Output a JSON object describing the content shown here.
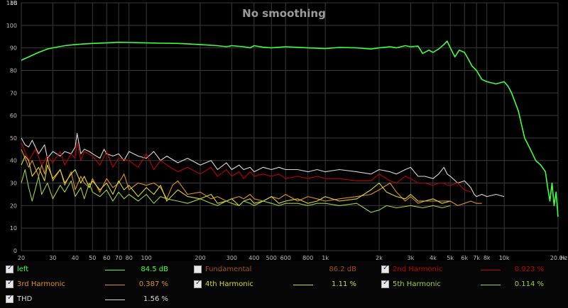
{
  "chart_data": {
    "type": "line",
    "title": "No smoothing",
    "xlabel": "Hz",
    "ylabel": "dB",
    "x_scale": "log",
    "xlim": [
      20,
      20000
    ],
    "ylim": [
      0,
      110
    ],
    "grid": true,
    "x_ticks": [
      {
        "v": 20,
        "label": "20"
      },
      {
        "v": 30,
        "label": "30"
      },
      {
        "v": 40,
        "label": "40"
      },
      {
        "v": 50,
        "label": "50"
      },
      {
        "v": 60,
        "label": "60"
      },
      {
        "v": 70,
        "label": "70"
      },
      {
        "v": 80,
        "label": "80"
      },
      {
        "v": 100,
        "label": "100"
      },
      {
        "v": 200,
        "label": "200"
      },
      {
        "v": 300,
        "label": "300"
      },
      {
        "v": 400,
        "label": "400"
      },
      {
        "v": 500,
        "label": "500"
      },
      {
        "v": 600,
        "label": "600"
      },
      {
        "v": 800,
        "label": "800"
      },
      {
        "v": 1000,
        "label": "1k"
      },
      {
        "v": 2000,
        "label": "2k"
      },
      {
        "v": 3000,
        "label": "3k"
      },
      {
        "v": 4000,
        "label": "4k"
      },
      {
        "v": 5000,
        "label": "5k"
      },
      {
        "v": 6000,
        "label": "6k"
      },
      {
        "v": 7000,
        "label": "7k"
      },
      {
        "v": 8000,
        "label": "8k"
      },
      {
        "v": 10000,
        "label": "10k"
      },
      {
        "v": 20000,
        "label": "20.0k"
      }
    ],
    "y_ticks": [
      {
        "v": 0,
        "label": "0"
      },
      {
        "v": 10,
        "label": "10"
      },
      {
        "v": 20,
        "label": "20"
      },
      {
        "v": 30,
        "label": "30"
      },
      {
        "v": 40,
        "label": "40"
      },
      {
        "v": 50,
        "label": "50"
      },
      {
        "v": 60,
        "label": "60"
      },
      {
        "v": 70,
        "label": "70"
      },
      {
        "v": 80,
        "label": "80"
      },
      {
        "v": 90,
        "label": "90"
      },
      {
        "v": 100,
        "label": "100"
      },
      {
        "v": 110,
        "label": "110"
      }
    ],
    "series": [
      {
        "name": "THD",
        "color": "#d8d8d8",
        "x": [
          20,
          21,
          22,
          23,
          25,
          27,
          28,
          30,
          33,
          35,
          38,
          40,
          41,
          43,
          45,
          48,
          50,
          55,
          58,
          60,
          65,
          70,
          75,
          80,
          90,
          100,
          110,
          120,
          130,
          150,
          170,
          200,
          230,
          250,
          280,
          300,
          330,
          350,
          380,
          400,
          450,
          500,
          550,
          600,
          700,
          800,
          900,
          1000,
          1200,
          1500,
          1800,
          2000,
          2300,
          2500,
          2800,
          3000,
          3300,
          3600,
          4000,
          4300,
          4600,
          4800,
          5000,
          5500,
          6000,
          6500,
          6800,
          7000,
          7500,
          8000,
          9000,
          10000
        ],
        "y": [
          50,
          47,
          46,
          49,
          43,
          47,
          41,
          44,
          42,
          44,
          43,
          46,
          52,
          43,
          45,
          44,
          43,
          41,
          45,
          43,
          42,
          43,
          40,
          44,
          42,
          41,
          44,
          40,
          42,
          39,
          41,
          38,
          40,
          36,
          39,
          36,
          38,
          36,
          37,
          35,
          37,
          36,
          37,
          36,
          36,
          35,
          36,
          35,
          36,
          35,
          34,
          36,
          35,
          34,
          36,
          37,
          33,
          33,
          32,
          34,
          37,
          34,
          33,
          30,
          31,
          28,
          25,
          24,
          25,
          24,
          25,
          24
        ]
      },
      {
        "name": "2nd Harmonic",
        "color": "#c00000",
        "x": [
          20,
          22,
          24,
          26,
          28,
          30,
          33,
          35,
          38,
          40,
          41,
          43,
          45,
          50,
          55,
          60,
          65,
          70,
          80,
          90,
          100,
          110,
          120,
          130,
          150,
          170,
          200,
          230,
          250,
          280,
          300,
          330,
          350,
          380,
          400,
          450,
          500,
          550,
          600,
          700,
          800,
          900,
          1000,
          1200,
          1500,
          1800,
          2000,
          2300,
          2500,
          2800,
          3000,
          3300,
          3600,
          4000,
          4300,
          4600,
          4800,
          5000,
          5500,
          6000,
          6500
        ],
        "y": [
          48,
          40,
          45,
          38,
          42,
          39,
          44,
          38,
          43,
          41,
          48,
          40,
          44,
          42,
          38,
          44,
          37,
          41,
          40,
          37,
          43,
          36,
          40,
          38,
          35,
          37,
          34,
          37,
          33,
          36,
          33,
          35,
          32,
          35,
          33,
          34,
          33,
          34,
          32,
          33,
          32,
          33,
          32,
          32,
          31,
          31,
          34,
          31,
          30,
          33,
          32,
          30,
          30,
          29,
          30,
          30,
          29,
          29,
          30,
          27,
          26
        ]
      },
      {
        "name": "3rd Harmonic",
        "color": "#e09020",
        "x": [
          20,
          21,
          22,
          23,
          25,
          26,
          27,
          28,
          30,
          33,
          35,
          38,
          40,
          43,
          45,
          48,
          50,
          55,
          60,
          65,
          70,
          75,
          80,
          90,
          100,
          110,
          120,
          130,
          140,
          150,
          170,
          200,
          230,
          250,
          280,
          300,
          330,
          350,
          380,
          400,
          450,
          500,
          550,
          600,
          700,
          800,
          900,
          1000,
          1200,
          1500,
          1800,
          2000,
          2300,
          2500,
          2800,
          3000,
          3300,
          3600,
          4000,
          4500,
          5000,
          5500,
          6000,
          6500,
          7000,
          7500
        ],
        "y": [
          45,
          41,
          37,
          40,
          33,
          38,
          34,
          41,
          31,
          36,
          29,
          35,
          27,
          33,
          30,
          28,
          32,
          26,
          32,
          28,
          30,
          34,
          27,
          30,
          29,
          30,
          28,
          23,
          29,
          31,
          25,
          26,
          23,
          24,
          22,
          23,
          24,
          23,
          25,
          23,
          22,
          24,
          23,
          25,
          22,
          24,
          23,
          22,
          23,
          24,
          25,
          27,
          30,
          26,
          22,
          24,
          21,
          22,
          22,
          22,
          22,
          20,
          21,
          22,
          21,
          21
        ]
      },
      {
        "name": "4th Harmonic",
        "color": "#d8d830",
        "x": [
          20,
          21,
          22,
          23,
          25,
          27,
          28,
          30,
          33,
          35,
          38,
          40,
          43,
          45,
          48,
          50,
          55,
          60,
          65,
          70,
          75,
          80,
          90,
          100,
          110,
          120,
          130,
          150,
          170,
          200,
          230,
          250,
          280,
          300,
          330,
          350,
          380,
          400,
          450,
          500,
          550,
          600,
          700,
          800,
          900,
          1000,
          1200,
          1500,
          1800,
          2000,
          2200,
          2500,
          2800,
          3000,
          3300,
          3600,
          4000,
          4500,
          5000
        ],
        "y": [
          38,
          42,
          40,
          33,
          37,
          31,
          38,
          32,
          36,
          30,
          34,
          36,
          30,
          33,
          28,
          31,
          27,
          30,
          25,
          31,
          27,
          29,
          24,
          28,
          25,
          29,
          22,
          27,
          24,
          23,
          25,
          21,
          22,
          23,
          20,
          22,
          23,
          21,
          22,
          24,
          21,
          22,
          23,
          21,
          22,
          24,
          22,
          23,
          27,
          30,
          26,
          24,
          23,
          25,
          22,
          22,
          23,
          21,
          22
        ]
      },
      {
        "name": "5th Harmonic",
        "color": "#a0d040",
        "x": [
          20,
          21,
          22,
          23,
          25,
          26,
          28,
          30,
          33,
          35,
          38,
          40,
          43,
          45,
          48,
          50,
          55,
          60,
          65,
          70,
          75,
          80,
          90,
          100,
          110,
          120,
          130,
          150,
          170,
          200,
          230,
          250,
          280,
          300,
          330,
          350,
          380,
          400,
          450,
          500,
          550,
          600,
          700,
          800,
          900,
          1000,
          1200,
          1500,
          1800,
          2000,
          2200,
          2500,
          3000,
          3500,
          4000,
          4500,
          5000
        ],
        "y": [
          30,
          36,
          28,
          22,
          33,
          25,
          30,
          23,
          29,
          26,
          31,
          24,
          28,
          23,
          30,
          26,
          24,
          27,
          22,
          26,
          23,
          25,
          22,
          25,
          21,
          24,
          23,
          22,
          21,
          23,
          21,
          20,
          22,
          21,
          20,
          22,
          21,
          20,
          22,
          21,
          20,
          21,
          21,
          20,
          21,
          21,
          20,
          21,
          17,
          18,
          20,
          19,
          20,
          19,
          20,
          19,
          20
        ]
      },
      {
        "name": "left",
        "color": "#40ff40",
        "x": [
          20,
          22,
          25,
          28,
          30,
          35,
          40,
          50,
          60,
          70,
          80,
          90,
          100,
          120,
          150,
          200,
          250,
          280,
          300,
          350,
          380,
          400,
          450,
          500,
          600,
          800,
          1000,
          1200,
          1500,
          1800,
          2000,
          2300,
          2500,
          2800,
          3000,
          3300,
          3500,
          3800,
          4000,
          4300,
          4600,
          4800,
          5000,
          5300,
          5600,
          6000,
          6300,
          6600,
          7000,
          7500,
          8000,
          9000,
          10000,
          10500,
          11000,
          12000,
          13000,
          14000,
          15000,
          16000,
          17000,
          17500,
          18000,
          18500,
          19000,
          19500,
          20000
        ],
        "y": [
          84.5,
          86,
          88,
          89.5,
          90,
          91,
          91.5,
          92,
          92.2,
          92.5,
          92.4,
          92.3,
          92.2,
          92.1,
          92,
          91.5,
          91,
          90.5,
          91,
          90.5,
          90,
          91,
          90.3,
          90,
          90.5,
          90,
          89.7,
          90.2,
          90,
          89.5,
          90,
          90.5,
          90,
          91,
          90.5,
          90.8,
          87.5,
          89,
          88,
          89.5,
          91.5,
          93,
          90,
          86,
          89,
          88,
          85,
          82,
          80,
          76,
          75,
          74,
          75,
          73,
          70,
          62,
          50,
          45,
          40,
          38,
          35,
          28,
          22,
          30,
          20,
          26,
          15
        ]
      }
    ],
    "legend": {
      "placement": "bottom",
      "entries": [
        {
          "name": "left",
          "value": "84.5 dB",
          "checked": true,
          "label_color": "#40ff40",
          "value_color": "#40ff40",
          "line_color": "#40ff40"
        },
        {
          "name": "Fundamental",
          "value": "86.2 dB",
          "checked": false,
          "label_color": "#a05010",
          "value_color": "#a05010",
          "line_color": ""
        },
        {
          "name": "2nd Harmonic",
          "value": "0.923 %",
          "checked": true,
          "label_color": "#c00000",
          "value_color": "#c00000",
          "line_color": "#c00000"
        },
        {
          "name": "3rd Harmonic",
          "value": "0.387 %",
          "checked": true,
          "label_color": "#e09020",
          "value_color": "#e09020",
          "line_color": "#e09020"
        },
        {
          "name": "4th Harmonic",
          "value": "1.11 %",
          "checked": true,
          "label_color": "#d8d830",
          "value_color": "#d8d830",
          "line_color": "#d8d830"
        },
        {
          "name": "5th Harmonic",
          "value": "0.114 %",
          "checked": true,
          "label_color": "#a0d040",
          "value_color": "#a0d040",
          "line_color": "#a0d040"
        },
        {
          "name": "THD",
          "value": "1.56 %",
          "checked": true,
          "label_color": "#d8d8d8",
          "value_color": "#d8d8d8",
          "line_color": "#d8d8d8"
        }
      ]
    }
  }
}
